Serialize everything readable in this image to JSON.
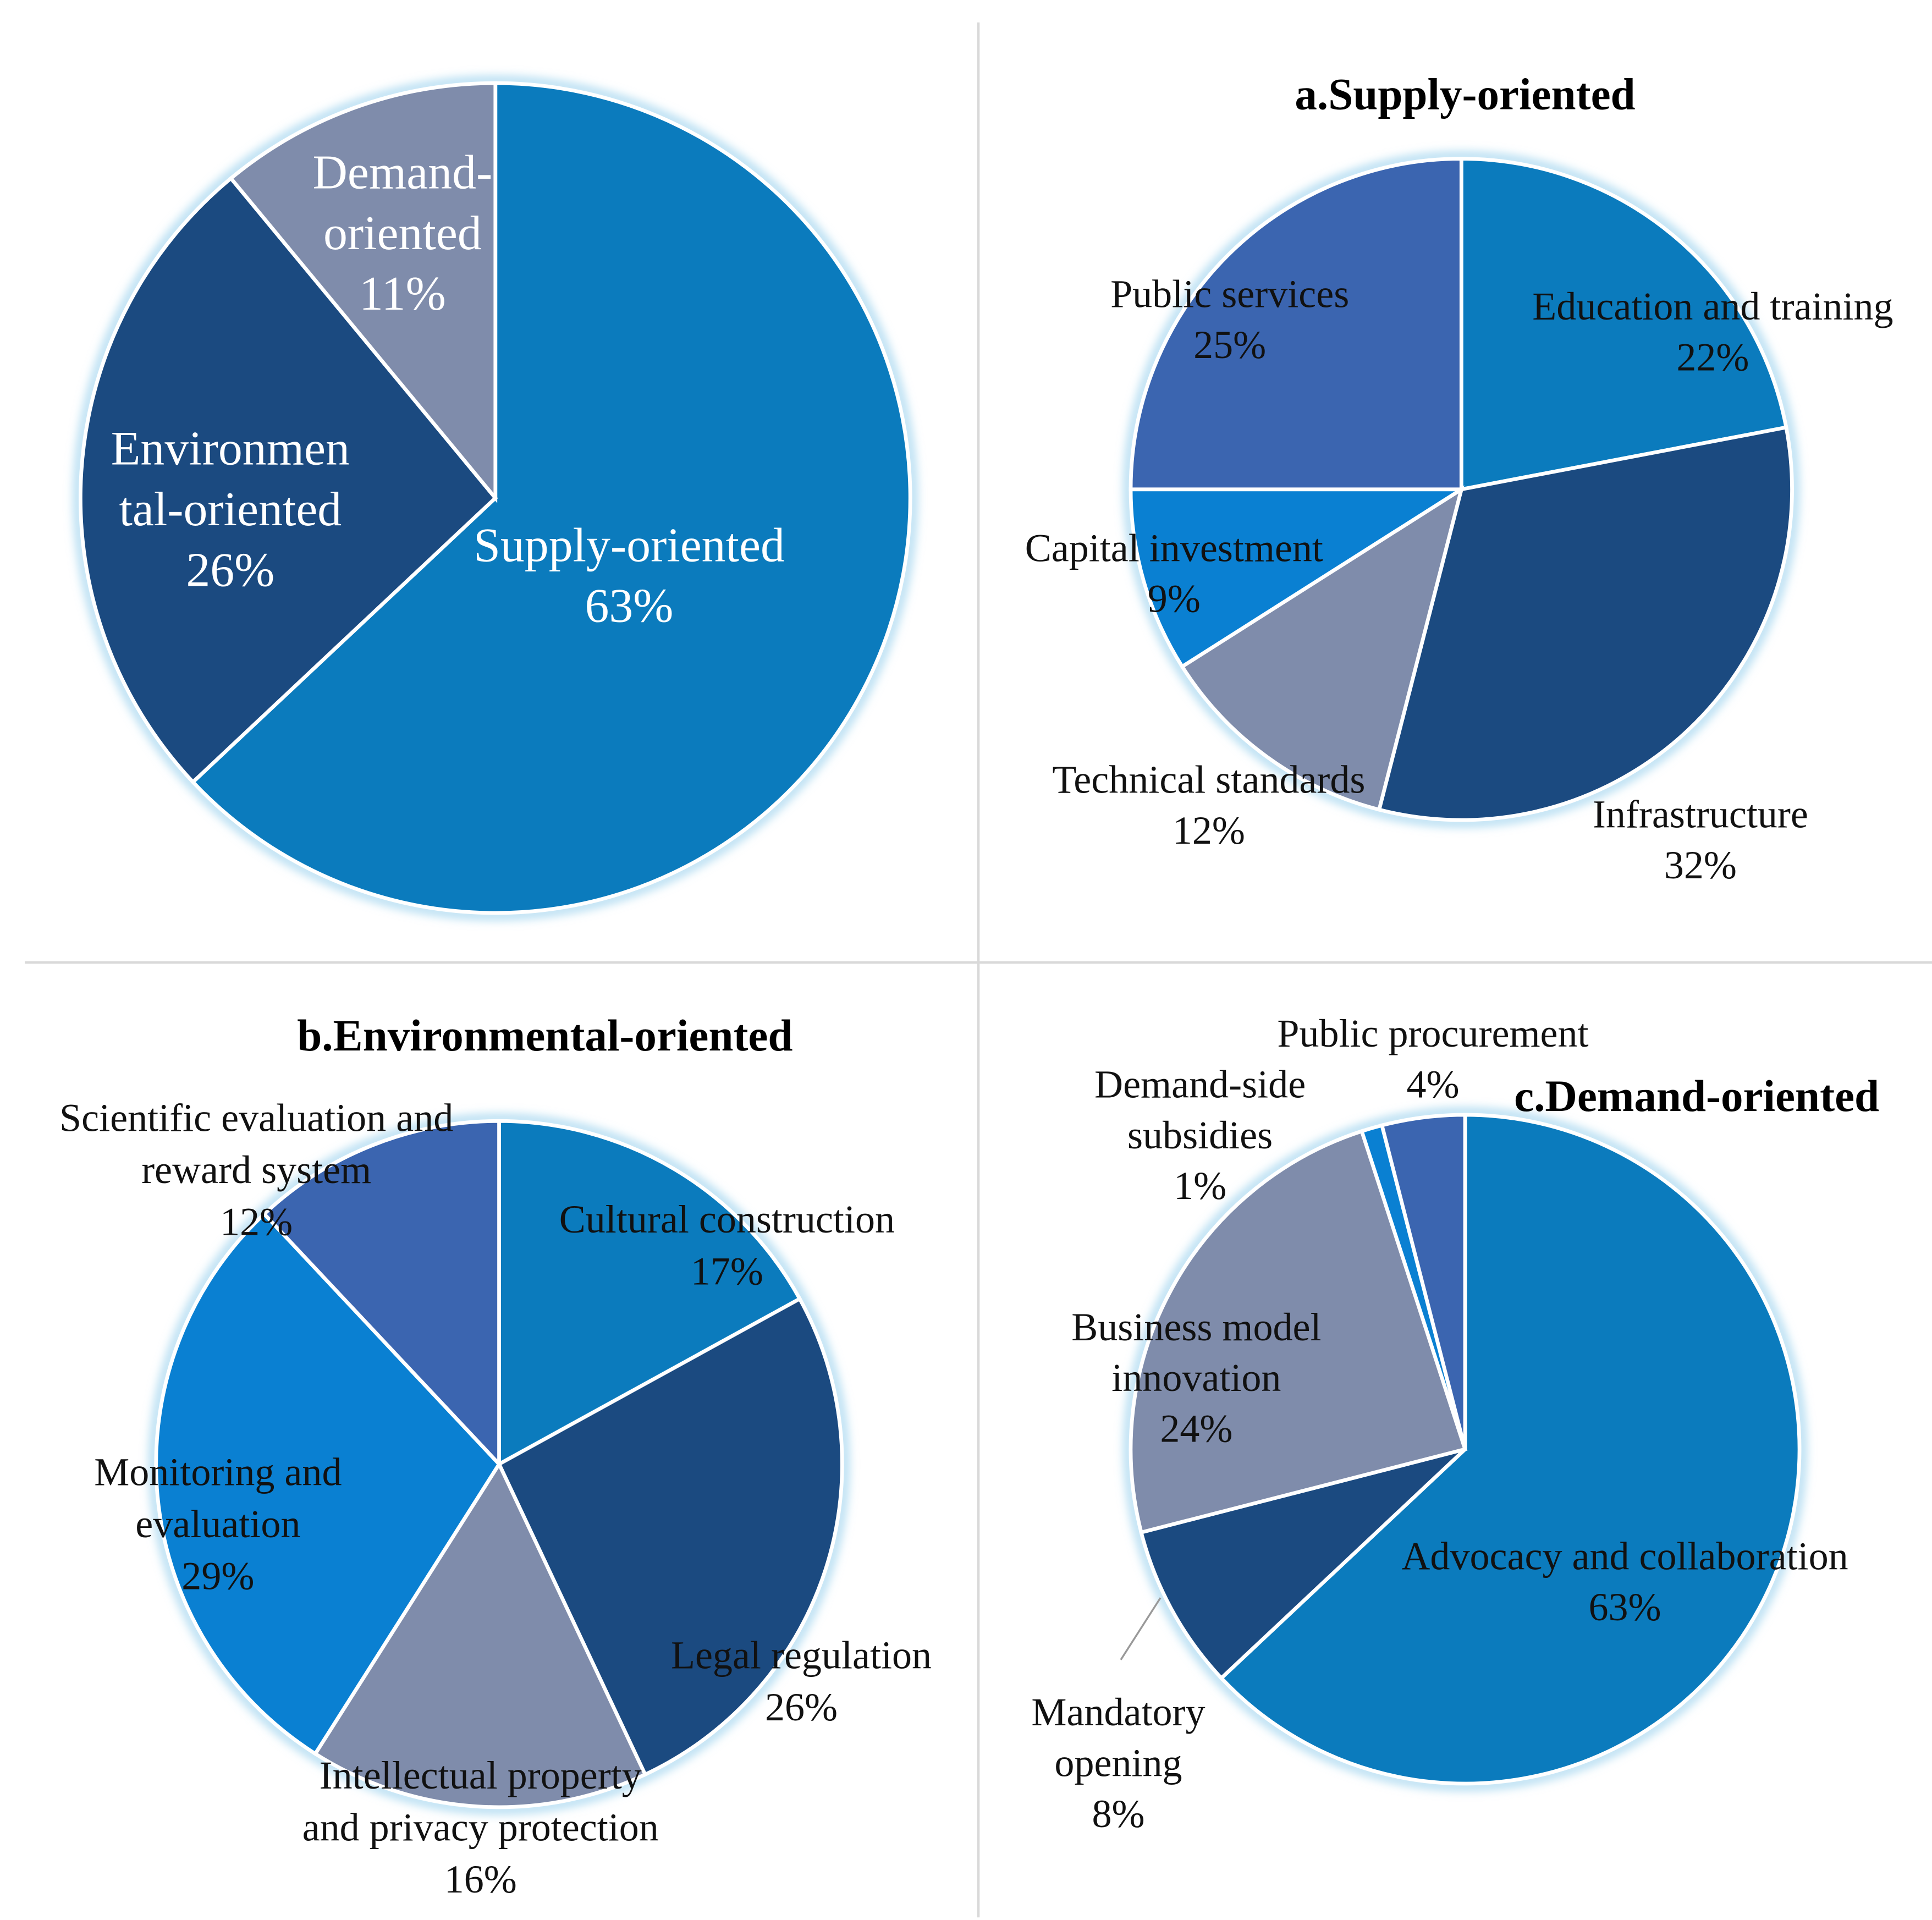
{
  "chart_data": [
    {
      "type": "pie",
      "title": "",
      "slices": [
        {
          "label": "Supply-oriented",
          "label_lines": [
            "Supply-oriented"
          ],
          "value": 63,
          "value_label": "63%",
          "color": "#0B7BBD"
        },
        {
          "label": "Environmental-oriented",
          "label_lines": [
            "Environmen",
            "tal-oriented"
          ],
          "value": 26,
          "value_label": "26%",
          "color": "#1B4A80"
        },
        {
          "label": "Demand-oriented",
          "label_lines": [
            "Demand-",
            "oriented"
          ],
          "value": 11,
          "value_label": "11%",
          "color": "#7F8CAB"
        }
      ]
    },
    {
      "type": "pie",
      "title": "a.Supply-oriented",
      "slices": [
        {
          "label": "Education and training",
          "label_lines": [
            "Education and training"
          ],
          "value": 22,
          "value_label": "22%",
          "color": "#0B7BBD"
        },
        {
          "label": "Infrastructure",
          "label_lines": [
            "Infrastructure"
          ],
          "value": 32,
          "value_label": "32%",
          "color": "#1B4A80"
        },
        {
          "label": "Technical standards",
          "label_lines": [
            "Technical standards"
          ],
          "value": 12,
          "value_label": "12%",
          "color": "#7F8CAB"
        },
        {
          "label": "Capital investment",
          "label_lines": [
            "Capital investment"
          ],
          "value": 9,
          "value_label": "9%",
          "color": "#0A80D2"
        },
        {
          "label": "Public services",
          "label_lines": [
            "Public services"
          ],
          "value": 25,
          "value_label": "25%",
          "color": "#3B65B0"
        }
      ]
    },
    {
      "type": "pie",
      "title": "b.Environmental-oriented",
      "slices": [
        {
          "label": "Cultural construction",
          "label_lines": [
            "Cultural construction"
          ],
          "value": 17,
          "value_label": "17%",
          "color": "#0B7BBD"
        },
        {
          "label": "Legal regulation",
          "label_lines": [
            "Legal regulation"
          ],
          "value": 26,
          "value_label": "26%",
          "color": "#1B4A80"
        },
        {
          "label": "Intellectual property and privacy protection",
          "label_lines": [
            "Intellectual property",
            "and privacy protection"
          ],
          "value": 16,
          "value_label": "16%",
          "color": "#7F8CAB"
        },
        {
          "label": "Monitoring and evaluation",
          "label_lines": [
            "Monitoring and",
            "evaluation"
          ],
          "value": 29,
          "value_label": "29%",
          "color": "#0A80D2"
        },
        {
          "label": "Scientific evaluation and reward system",
          "label_lines": [
            "Scientific evaluation and",
            "reward system"
          ],
          "value": 12,
          "value_label": "12%",
          "color": "#3B65B0"
        }
      ]
    },
    {
      "type": "pie",
      "title": "c.Demand-oriented",
      "slices": [
        {
          "label": "Advocacy and collaboration",
          "label_lines": [
            "Advocacy and collaboration"
          ],
          "value": 63,
          "value_label": "63%",
          "color": "#0B7BBD"
        },
        {
          "label": "Mandatory opening",
          "label_lines": [
            "Mandatory",
            "opening"
          ],
          "value": 8,
          "value_label": "8%",
          "color": "#1B4A80"
        },
        {
          "label": "Business model innovation",
          "label_lines": [
            "Business model",
            "innovation"
          ],
          "value": 24,
          "value_label": "24%",
          "color": "#7F8CAB"
        },
        {
          "label": "Demand-side subsidies",
          "label_lines": [
            "Demand-side",
            "subsidies"
          ],
          "value": 1,
          "value_label": "1%",
          "color": "#0A80D2"
        },
        {
          "label": "Public procurement",
          "label_lines": [
            "Public procurement"
          ],
          "value": 4,
          "value_label": "4%",
          "color": "#3B65B0"
        }
      ]
    }
  ]
}
